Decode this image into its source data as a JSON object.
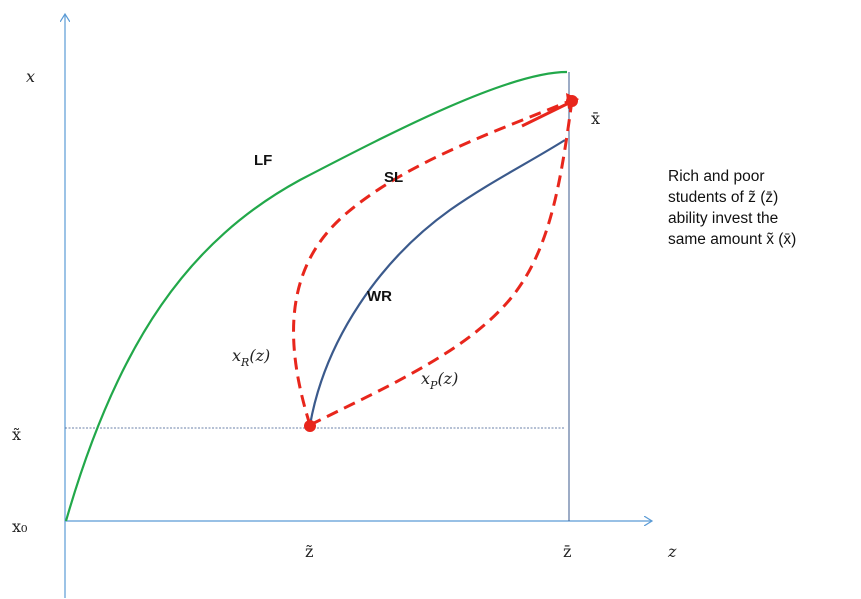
{
  "axes": {
    "y_label": "x",
    "x_label": "z",
    "y_origin_label": "x₀",
    "x_tilde_label": "x̃",
    "x_bar_label": "x̄",
    "z_tilde_label": "z̃",
    "z_bar_label": "z̄"
  },
  "curves": {
    "lf": {
      "label": "LF",
      "color": "#22a84a"
    },
    "sl": {
      "label": "SL",
      "color": "#e8261c"
    },
    "wr": {
      "label": "WR",
      "color": "#3b5a8c"
    },
    "x_rich": {
      "label_main": "x",
      "label_sub": "R",
      "label_arg": "(z)",
      "color": "#e8261c"
    },
    "x_poor": {
      "label_main": "x",
      "label_sub": "P",
      "label_arg": "(z)",
      "color": "#e8261c"
    }
  },
  "colors": {
    "axis": "#5b9bd5",
    "guide": "#3b5a8c"
  },
  "annotation": {
    "line1": "Rich and poor",
    "line2": "students of z̃ (z̄)",
    "line3": "ability invest the",
    "line4": "same amount x̃ (x̄)"
  }
}
